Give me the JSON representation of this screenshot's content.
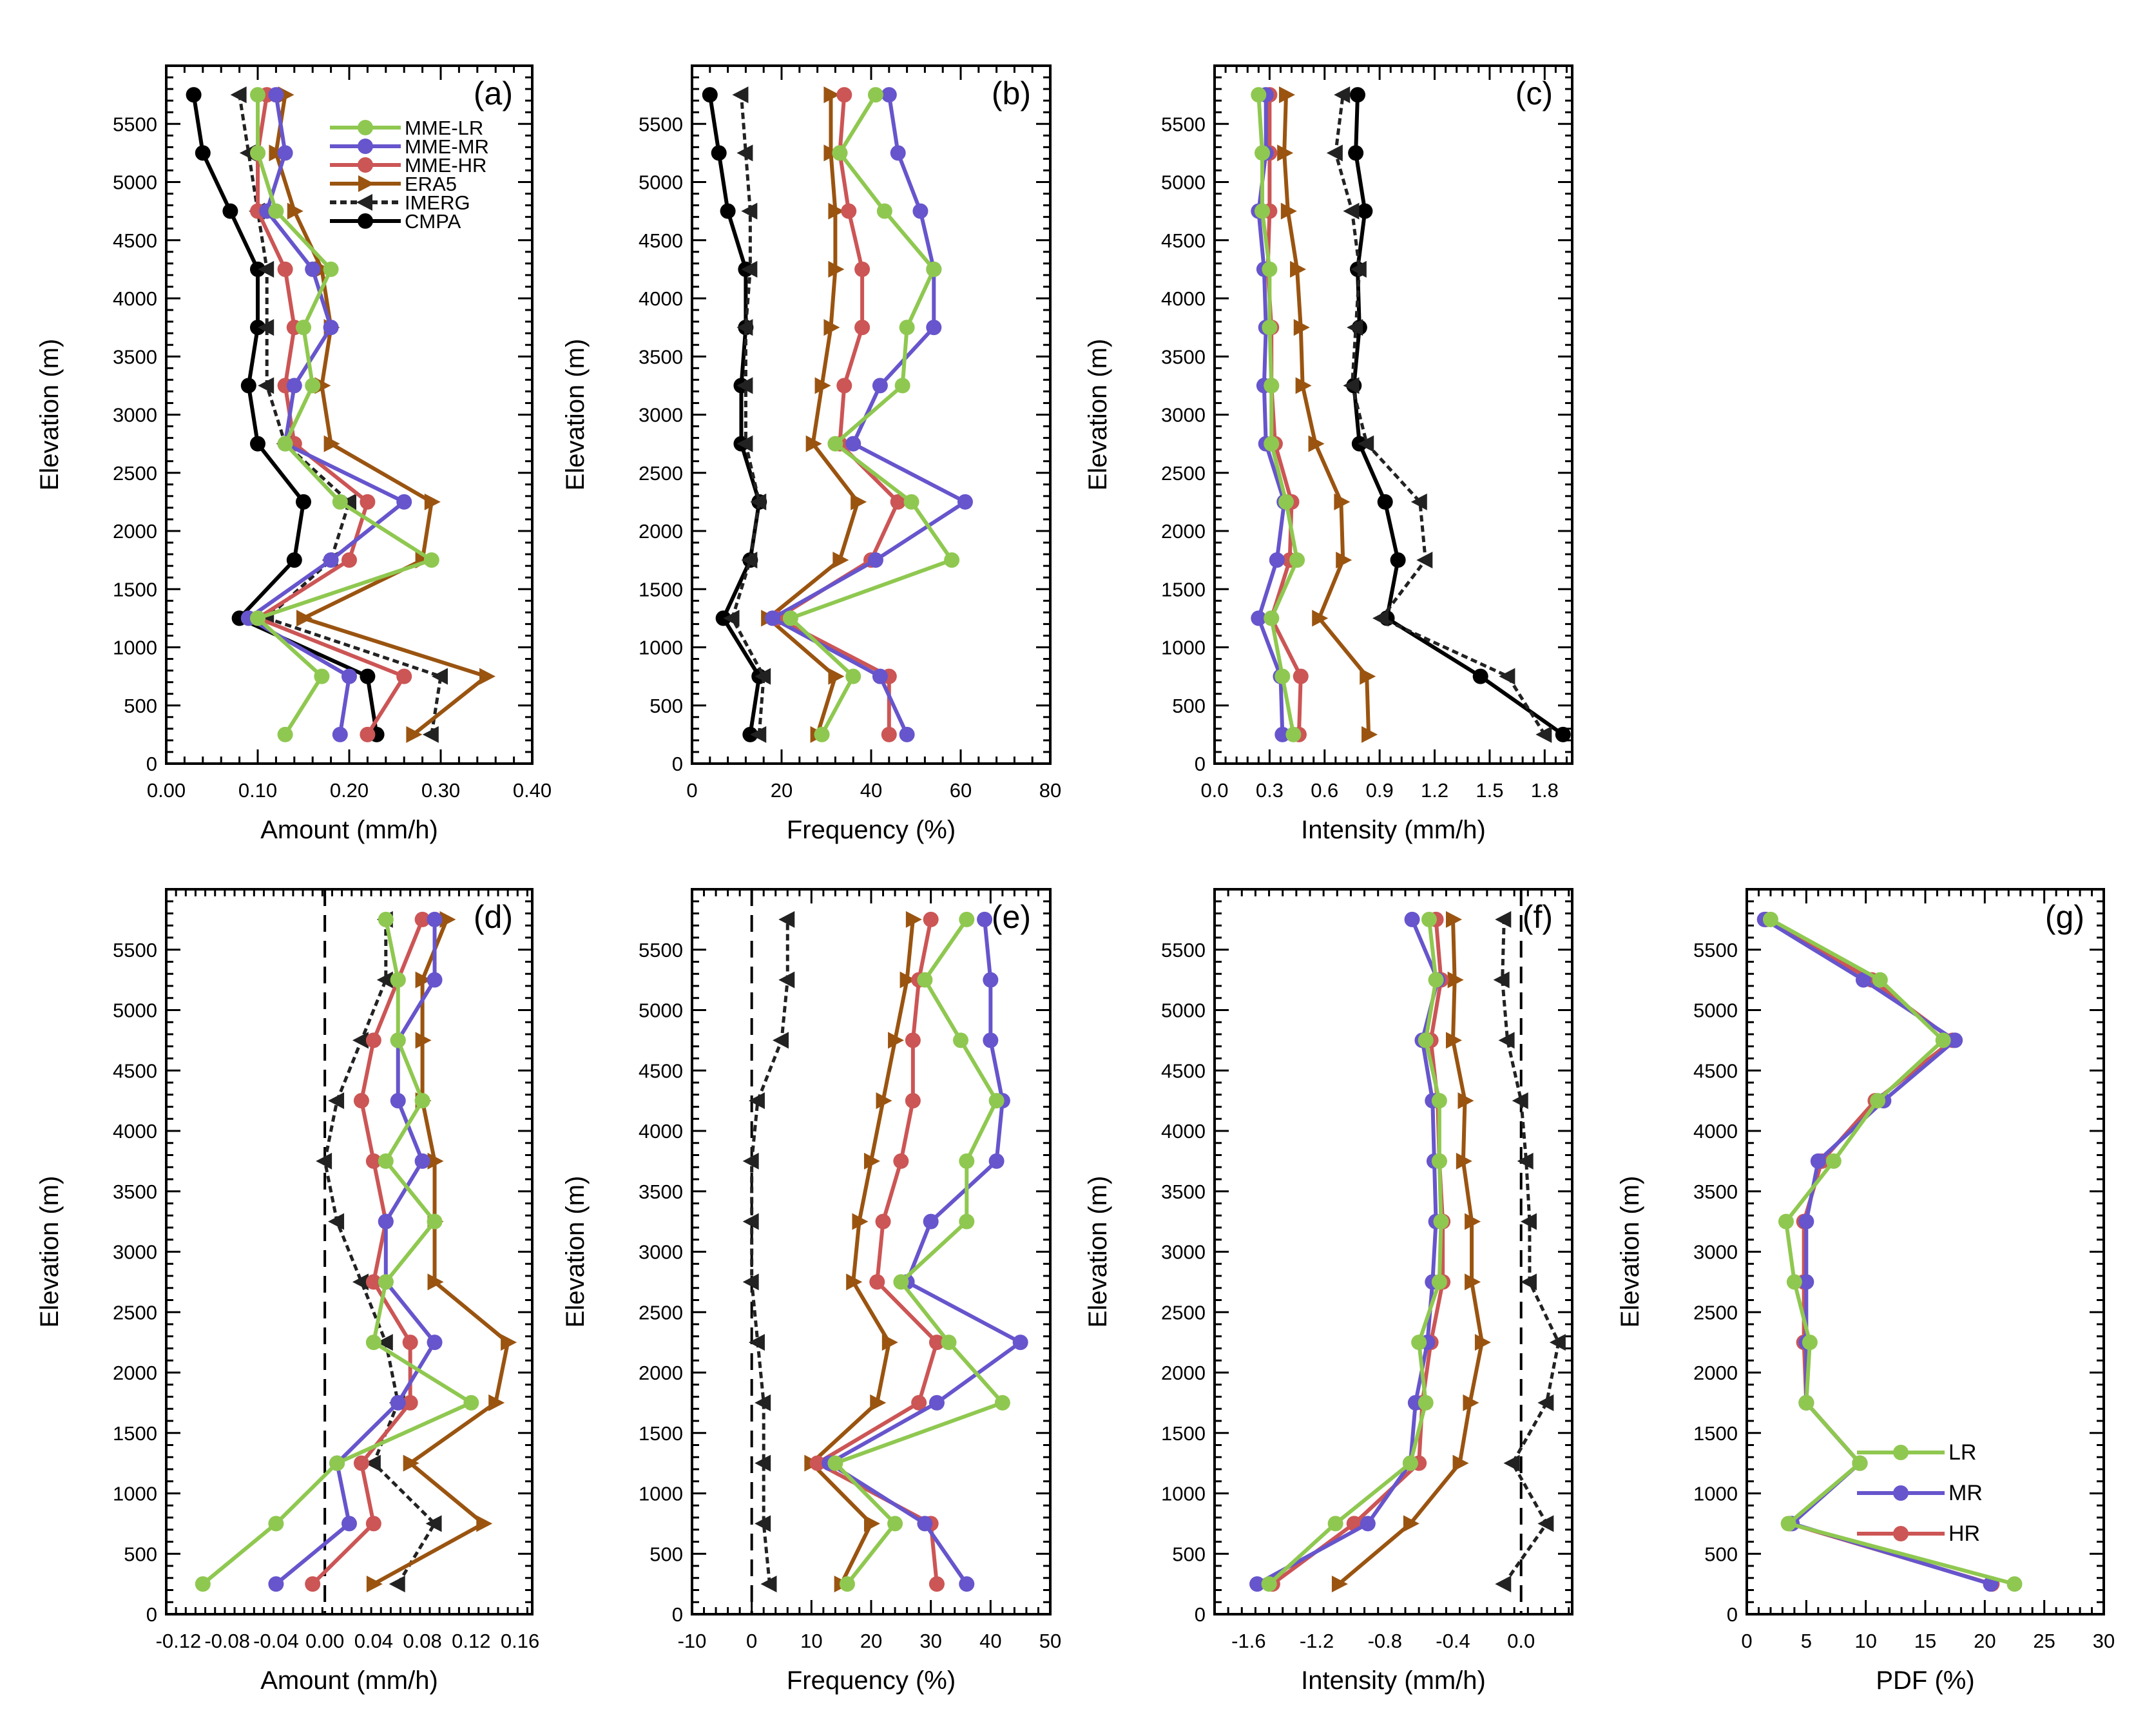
{
  "colors": {
    "LR": "#8fc850",
    "MR": "#6655cc",
    "HR": "#cc5555",
    "ERA5": "#9a5410",
    "IMERG": "#222222",
    "CMPA": "#000000"
  },
  "legend_a": [
    {
      "key": "LR",
      "label": "MME-LR",
      "marker": "circle",
      "dash": false
    },
    {
      "key": "MR",
      "label": "MME-MR",
      "marker": "circle",
      "dash": false
    },
    {
      "key": "HR",
      "label": "MME-HR",
      "marker": "circle",
      "dash": false
    },
    {
      "key": "ERA5",
      "label": "ERA5",
      "marker": "tri-right",
      "dash": false
    },
    {
      "key": "IMERG",
      "label": "IMERG",
      "marker": "tri-left",
      "dash": true
    },
    {
      "key": "CMPA",
      "label": "CMPA",
      "marker": "circle",
      "dash": false
    }
  ],
  "legend_g": [
    {
      "key": "LR",
      "label": "LR"
    },
    {
      "key": "MR",
      "label": "MR"
    },
    {
      "key": "HR",
      "label": "HR"
    }
  ],
  "chart_data": [
    {
      "id": "a",
      "type": "line",
      "label": "(a)",
      "xlabel": "Amount (mm/h)",
      "ylabel": "Elevation (m)",
      "xlim": [
        0,
        0.4
      ],
      "ylim": [
        0,
        6000
      ],
      "xticks": [
        0,
        0.1,
        0.2,
        0.3,
        0.4
      ],
      "xticklabels": [
        "0.00",
        "0.10",
        "0.20",
        "0.30",
        "0.40"
      ],
      "yticks": [
        0,
        500,
        1000,
        1500,
        2000,
        2500,
        3000,
        3500,
        4000,
        4500,
        5000,
        5500
      ],
      "elevations": [
        250,
        750,
        1250,
        1750,
        2250,
        2750,
        3250,
        3750,
        4250,
        4750,
        5250,
        5750
      ],
      "series": [
        {
          "key": "LR",
          "name": "MME-LR",
          "values": [
            0.13,
            0.17,
            0.1,
            0.29,
            0.19,
            0.13,
            0.16,
            0.15,
            0.18,
            0.12,
            0.1,
            0.1
          ]
        },
        {
          "key": "MR",
          "name": "MME-MR",
          "values": [
            0.19,
            0.2,
            0.09,
            0.18,
            0.26,
            0.13,
            0.14,
            0.18,
            0.16,
            0.11,
            0.13,
            0.12
          ]
        },
        {
          "key": "HR",
          "name": "MME-HR",
          "values": [
            0.22,
            0.26,
            0.1,
            0.2,
            0.22,
            0.14,
            0.13,
            0.14,
            0.13,
            0.1,
            0.1,
            0.11
          ]
        },
        {
          "key": "ERA5",
          "name": "ERA5",
          "values": [
            0.27,
            0.35,
            0.15,
            0.28,
            0.29,
            0.18,
            0.17,
            0.18,
            0.17,
            0.14,
            0.12,
            0.13
          ]
        },
        {
          "key": "IMERG",
          "name": "IMERG",
          "values": [
            0.29,
            0.3,
            0.11,
            0.18,
            0.2,
            0.13,
            0.11,
            0.11,
            0.11,
            0.1,
            0.09,
            0.08
          ]
        },
        {
          "key": "CMPA",
          "name": "CMPA",
          "values": [
            0.23,
            0.22,
            0.08,
            0.14,
            0.15,
            0.1,
            0.09,
            0.1,
            0.1,
            0.07,
            0.04,
            0.03
          ]
        }
      ]
    },
    {
      "id": "b",
      "type": "line",
      "label": "(b)",
      "xlabel": "Frequency (%)",
      "ylabel": "Elevation (m)",
      "xlim": [
        0,
        80
      ],
      "ylim": [
        0,
        6000
      ],
      "xticks": [
        0,
        20,
        40,
        60,
        80
      ],
      "xticklabels": [
        "0",
        "20",
        "40",
        "60",
        "80"
      ],
      "yticks": [
        0,
        500,
        1000,
        1500,
        2000,
        2500,
        3000,
        3500,
        4000,
        4500,
        5000,
        5500
      ],
      "elevations": [
        250,
        750,
        1250,
        1750,
        2250,
        2750,
        3250,
        3750,
        4250,
        4750,
        5250,
        5750
      ],
      "series": [
        {
          "key": "LR",
          "name": "MME-LR",
          "values": [
            29,
            36,
            22,
            58,
            49,
            32,
            47,
            48,
            54,
            43,
            33,
            41
          ]
        },
        {
          "key": "MR",
          "name": "MME-MR",
          "values": [
            48,
            42,
            18,
            41,
            61,
            36,
            42,
            54,
            54,
            51,
            46,
            44
          ]
        },
        {
          "key": "HR",
          "name": "MME-HR",
          "values": [
            44,
            44,
            19,
            40,
            46,
            33,
            34,
            38,
            38,
            35,
            33,
            34
          ]
        },
        {
          "key": "ERA5",
          "name": "ERA5",
          "values": [
            28,
            32,
            17,
            33,
            37,
            27,
            29,
            31,
            32,
            32,
            31,
            31
          ]
        },
        {
          "key": "IMERG",
          "name": "IMERG",
          "values": [
            15,
            16,
            9,
            13,
            15,
            12,
            12,
            12,
            13,
            13,
            12,
            11
          ]
        },
        {
          "key": "CMPA",
          "name": "CMPA",
          "values": [
            13,
            15,
            7,
            13,
            15,
            11,
            11,
            12,
            12,
            8,
            6,
            4
          ]
        }
      ]
    },
    {
      "id": "c",
      "type": "line",
      "label": "(c)",
      "xlabel": "Intensity (mm/h)",
      "ylabel": "Elevation (m)",
      "xlim": [
        0,
        1.95
      ],
      "ylim": [
        0,
        6000
      ],
      "xticks": [
        0,
        0.3,
        0.6,
        0.9,
        1.2,
        1.5,
        1.8
      ],
      "xticklabels": [
        "0.0",
        "0.3",
        "0.6",
        "0.9",
        "1.2",
        "1.5",
        "1.8"
      ],
      "yticks": [
        0,
        500,
        1000,
        1500,
        2000,
        2500,
        3000,
        3500,
        4000,
        4500,
        5000,
        5500
      ],
      "elevations": [
        250,
        750,
        1250,
        1750,
        2250,
        2750,
        3250,
        3750,
        4250,
        4750,
        5250,
        5750
      ],
      "series": [
        {
          "key": "LR",
          "name": "MME-LR",
          "values": [
            0.43,
            0.37,
            0.31,
            0.45,
            0.39,
            0.31,
            0.31,
            0.3,
            0.3,
            0.26,
            0.26,
            0.24
          ]
        },
        {
          "key": "MR",
          "name": "MME-MR",
          "values": [
            0.37,
            0.36,
            0.24,
            0.34,
            0.38,
            0.28,
            0.27,
            0.28,
            0.27,
            0.24,
            0.28,
            0.28
          ]
        },
        {
          "key": "HR",
          "name": "MME-HR",
          "values": [
            0.46,
            0.47,
            0.31,
            0.41,
            0.42,
            0.33,
            0.31,
            0.31,
            0.29,
            0.3,
            0.3,
            0.3
          ]
        },
        {
          "key": "ERA5",
          "name": "ERA5",
          "values": [
            0.84,
            0.83,
            0.57,
            0.7,
            0.69,
            0.55,
            0.48,
            0.47,
            0.45,
            0.4,
            0.38,
            0.39
          ]
        },
        {
          "key": "IMERG",
          "name": "IMERG",
          "values": [
            1.8,
            1.6,
            0.91,
            1.15,
            1.12,
            0.83,
            0.75,
            0.77,
            0.79,
            0.75,
            0.66,
            0.7
          ]
        },
        {
          "key": "CMPA",
          "name": "CMPA",
          "values": [
            1.9,
            1.45,
            0.94,
            1.0,
            0.93,
            0.79,
            0.76,
            0.79,
            0.78,
            0.82,
            0.77,
            0.78
          ]
        }
      ]
    },
    {
      "id": "d",
      "type": "line",
      "label": "(d)",
      "xlabel": "Amount (mm/h)",
      "ylabel": "Elevation (m)",
      "xlim": [
        -0.13,
        0.17
      ],
      "ylim": [
        0,
        6000
      ],
      "zero_line": 0,
      "xticks": [
        -0.12,
        -0.08,
        -0.04,
        0,
        0.04,
        0.08,
        0.12,
        0.16
      ],
      "xticklabels": [
        "-0.12",
        "-0.08",
        "-0.04",
        "0.00",
        "0.04",
        "0.08",
        "0.12",
        "0.16"
      ],
      "yticks": [
        0,
        500,
        1000,
        1500,
        2000,
        2500,
        3000,
        3500,
        4000,
        4500,
        5000,
        5500
      ],
      "elevations": [
        250,
        750,
        1250,
        1750,
        2250,
        2750,
        3250,
        3750,
        4250,
        4750,
        5250,
        5750
      ],
      "series": [
        {
          "key": "LR",
          "name": "LR",
          "values": [
            -0.1,
            -0.04,
            0.01,
            0.12,
            0.04,
            0.05,
            0.09,
            0.05,
            0.08,
            0.06,
            0.06,
            0.05
          ]
        },
        {
          "key": "MR",
          "name": "MR",
          "values": [
            -0.04,
            0.02,
            0.01,
            0.06,
            0.09,
            0.05,
            0.05,
            0.08,
            0.06,
            0.06,
            0.09,
            0.09
          ]
        },
        {
          "key": "HR",
          "name": "HR",
          "values": [
            -0.01,
            0.04,
            0.03,
            0.07,
            0.07,
            0.04,
            0.05,
            0.04,
            0.03,
            0.04,
            0.06,
            0.08
          ]
        },
        {
          "key": "ERA5",
          "name": "ERA5",
          "values": [
            0.04,
            0.13,
            0.07,
            0.14,
            0.15,
            0.09,
            0.09,
            0.09,
            0.08,
            0.08,
            0.08,
            0.1
          ]
        },
        {
          "key": "IMERG",
          "name": "IMERG",
          "values": [
            0.06,
            0.09,
            0.04,
            0.06,
            0.05,
            0.03,
            0.01,
            0.0,
            0.01,
            0.03,
            0.05,
            0.05
          ]
        }
      ]
    },
    {
      "id": "e",
      "type": "line",
      "label": "(e)",
      "xlabel": "Frequency (%)",
      "ylabel": "Elevation (m)",
      "xlim": [
        -10,
        50
      ],
      "ylim": [
        0,
        6000
      ],
      "zero_line": 0,
      "xticks": [
        -10,
        0,
        10,
        20,
        30,
        40,
        50
      ],
      "xticklabels": [
        "-10",
        "0",
        "10",
        "20",
        "30",
        "40",
        "50"
      ],
      "yticks": [
        0,
        500,
        1000,
        1500,
        2000,
        2500,
        3000,
        3500,
        4000,
        4500,
        5000,
        5500
      ],
      "elevations": [
        250,
        750,
        1250,
        1750,
        2250,
        2750,
        3250,
        3750,
        4250,
        4750,
        5250,
        5750
      ],
      "series": [
        {
          "key": "LR",
          "name": "LR",
          "values": [
            16,
            24,
            14,
            42,
            33,
            25,
            36,
            36,
            41,
            35,
            29,
            36
          ]
        },
        {
          "key": "MR",
          "name": "MR",
          "values": [
            36,
            29,
            13,
            31,
            45,
            26,
            30,
            41,
            42,
            40,
            40,
            39
          ]
        },
        {
          "key": "HR",
          "name": "HR",
          "values": [
            31,
            30,
            11,
            28,
            31,
            21,
            22,
            25,
            27,
            27,
            28,
            30
          ]
        },
        {
          "key": "ERA5",
          "name": "ERA5",
          "values": [
            15,
            20,
            10,
            21,
            23,
            17,
            18,
            20,
            22,
            24,
            26,
            27
          ]
        },
        {
          "key": "IMERG",
          "name": "IMERG",
          "values": [
            3,
            2,
            2,
            2,
            1,
            0,
            0,
            0,
            1,
            5,
            6,
            6
          ]
        }
      ]
    },
    {
      "id": "f",
      "type": "line",
      "label": "(f)",
      "xlabel": "Intensity (mm/h)",
      "ylabel": "Elevation (m)",
      "xlim": [
        -1.8,
        0.3
      ],
      "ylim": [
        0,
        6000
      ],
      "zero_line": 0,
      "xticks": [
        -1.6,
        -1.2,
        -0.8,
        -0.4,
        0
      ],
      "xticklabels": [
        "-1.6",
        "-1.2",
        "-0.8",
        "-0.4",
        "0.0"
      ],
      "yticks": [
        0,
        500,
        1000,
        1500,
        2000,
        2500,
        3000,
        3500,
        4000,
        4500,
        5000,
        5500
      ],
      "elevations": [
        250,
        750,
        1250,
        1750,
        2250,
        2750,
        3250,
        3750,
        4250,
        4750,
        5250,
        5750
      ],
      "series": [
        {
          "key": "LR",
          "name": "LR",
          "values": [
            -1.48,
            -1.09,
            -0.65,
            -0.56,
            -0.6,
            -0.48,
            -0.47,
            -0.48,
            -0.48,
            -0.56,
            -0.5,
            -0.54
          ]
        },
        {
          "key": "MR",
          "name": "MR",
          "values": [
            -1.55,
            -0.9,
            -0.65,
            -0.62,
            -0.55,
            -0.52,
            -0.5,
            -0.51,
            -0.52,
            -0.58,
            -0.49,
            -0.64
          ]
        },
        {
          "key": "HR",
          "name": "HR",
          "values": [
            -1.46,
            -0.98,
            -0.6,
            -0.58,
            -0.53,
            -0.46,
            -0.46,
            -0.48,
            -0.49,
            -0.53,
            -0.47,
            -0.5
          ]
        },
        {
          "key": "ERA5",
          "name": "ERA5",
          "values": [
            -1.07,
            -0.65,
            -0.36,
            -0.3,
            -0.23,
            -0.29,
            -0.29,
            -0.34,
            -0.33,
            -0.4,
            -0.39,
            -0.4
          ]
        },
        {
          "key": "IMERG",
          "name": "IMERG",
          "values": [
            -0.1,
            0.15,
            -0.05,
            0.15,
            0.22,
            0.05,
            0.05,
            0.03,
            0.0,
            -0.08,
            -0.11,
            -0.1
          ]
        }
      ]
    },
    {
      "id": "g",
      "type": "line",
      "label": "(g)",
      "xlabel": "PDF (%)",
      "ylabel": "Elevation (m)",
      "xlim": [
        0,
        30
      ],
      "ylim": [
        0,
        6000
      ],
      "xticks": [
        0,
        5,
        10,
        15,
        20,
        25,
        30
      ],
      "xticklabels": [
        "0",
        "5",
        "10",
        "15",
        "20",
        "25",
        "30"
      ],
      "yticks": [
        0,
        500,
        1000,
        1500,
        2000,
        2500,
        3000,
        3500,
        4000,
        4500,
        5000,
        5500
      ],
      "elevations": [
        250,
        750,
        1250,
        1750,
        2250,
        2750,
        3250,
        3750,
        4250,
        4750,
        5250,
        5750
      ],
      "series": [
        {
          "key": "LR",
          "name": "LR",
          "values": [
            22.5,
            3.5,
            9.5,
            5.0,
            5.3,
            4.0,
            3.3,
            7.3,
            11.0,
            16.5,
            11.2,
            2.0
          ]
        },
        {
          "key": "MR",
          "name": "MR",
          "values": [
            20.5,
            3.8,
            9.5,
            5.0,
            5.0,
            5.0,
            5.0,
            6.0,
            11.5,
            17.5,
            9.8,
            1.5
          ]
        },
        {
          "key": "HR",
          "name": "HR",
          "values": [
            20.6,
            3.6,
            9.5,
            5.0,
            4.8,
            4.8,
            4.8,
            6.3,
            10.8,
            17.3,
            10.5,
            1.6
          ]
        }
      ]
    }
  ]
}
